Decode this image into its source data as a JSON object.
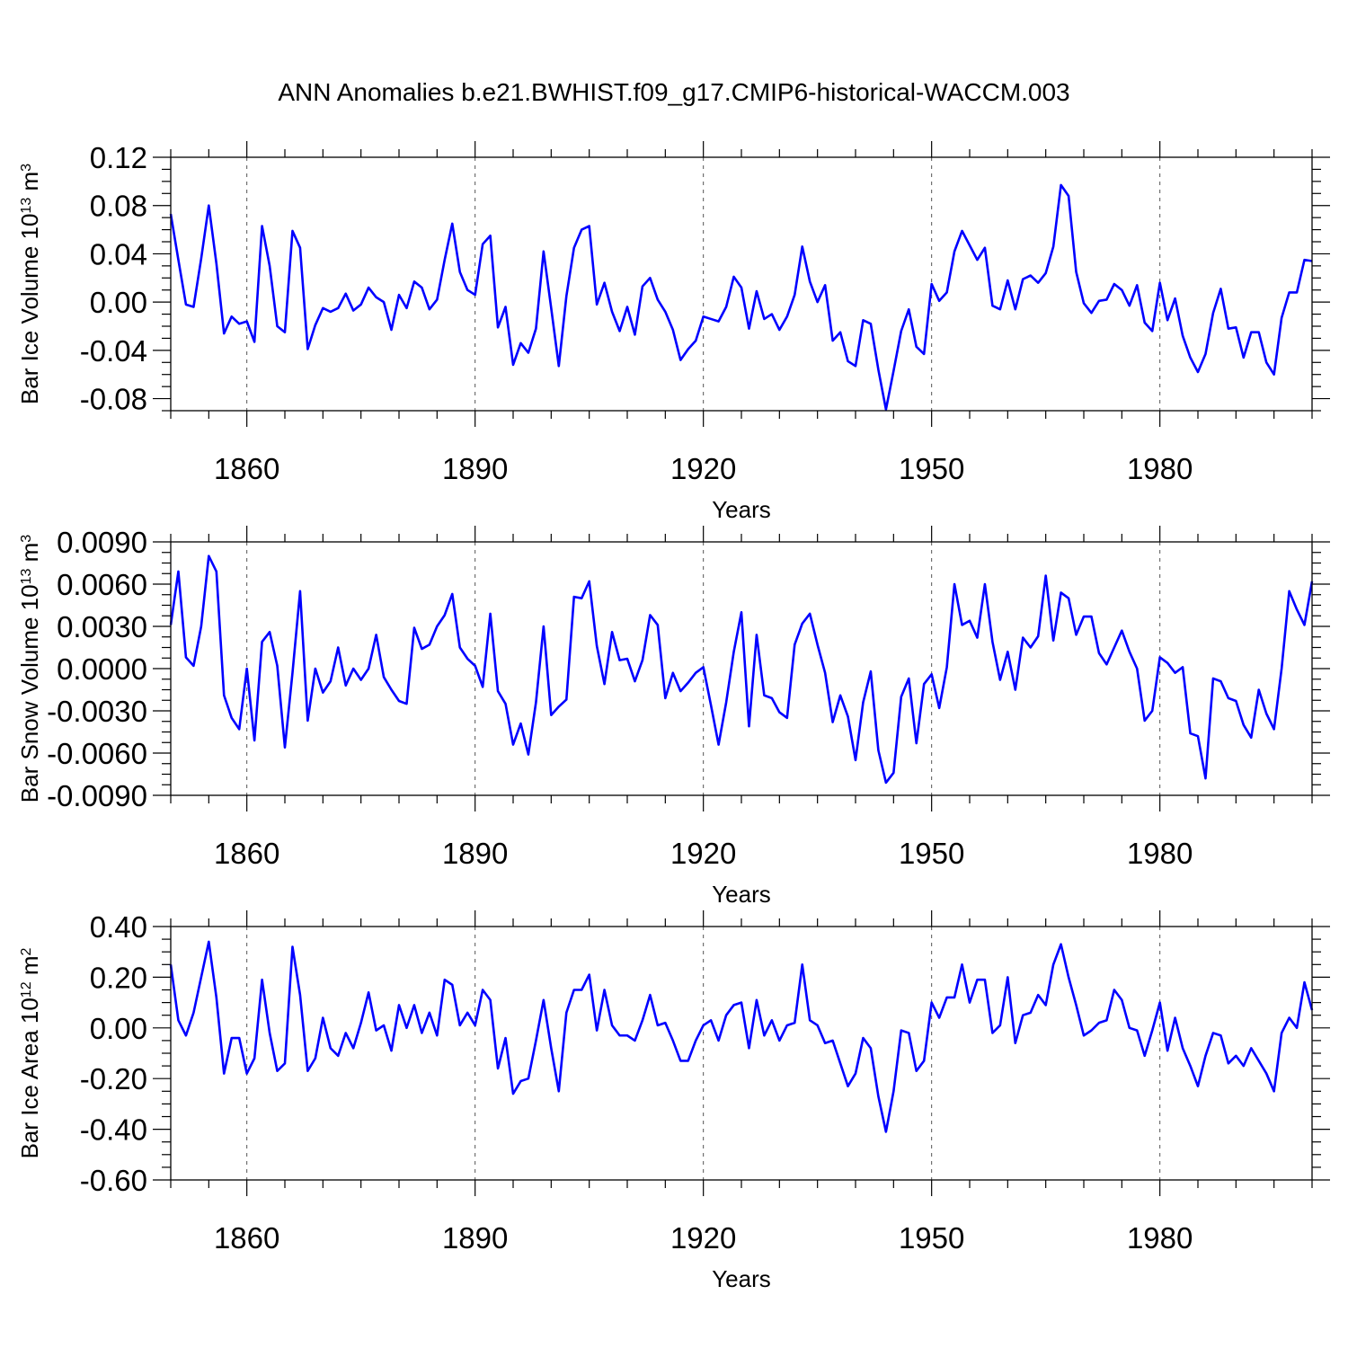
{
  "title": "ANN Anomalies b.e21.BWHIST.f09_g17.CMIP6-historical-WACCM.003",
  "colors": {
    "line": "#0000ff",
    "axis": "#000000",
    "background": "#ffffff"
  },
  "chart_data": [
    {
      "type": "line",
      "name": "ice-volume",
      "ylabel": {
        "main": "Bar Ice Volume 10",
        "sup1": "13",
        "unit": " m",
        "sup2": "3"
      },
      "xlabel": "Years",
      "xlim": [
        1850,
        2000
      ],
      "ylim": [
        -0.09,
        0.12
      ],
      "xticks": [
        1860,
        1890,
        1920,
        1950,
        1980
      ],
      "xtick_labels": [
        "1860",
        "1890",
        "1920",
        "1950",
        "1980"
      ],
      "yticks": [
        -0.08,
        -0.04,
        0.0,
        0.04,
        0.08,
        0.12
      ],
      "ytick_labels": [
        "-0.08",
        "-0.04",
        "0.00",
        "0.04",
        "0.08",
        "0.12"
      ],
      "x_start": 1850,
      "values": [
        0.073,
        0.035,
        -0.002,
        -0.004,
        0.036,
        0.08,
        0.032,
        -0.026,
        -0.012,
        -0.018,
        -0.016,
        -0.033,
        0.063,
        0.03,
        -0.02,
        -0.025,
        0.059,
        0.045,
        -0.039,
        -0.019,
        -0.005,
        -0.008,
        -0.005,
        0.007,
        -0.007,
        -0.002,
        0.012,
        0.004,
        0.0,
        -0.023,
        0.006,
        -0.005,
        0.017,
        0.012,
        -0.006,
        0.002,
        0.035,
        0.065,
        0.025,
        0.01,
        0.006,
        0.048,
        0.055,
        -0.021,
        -0.004,
        -0.052,
        -0.034,
        -0.042,
        -0.022,
        0.042,
        -0.005,
        -0.053,
        0.005,
        0.045,
        0.06,
        0.063,
        -0.002,
        0.016,
        -0.008,
        -0.024,
        -0.004,
        -0.027,
        0.013,
        0.02,
        0.002,
        -0.008,
        -0.023,
        -0.048,
        -0.039,
        -0.032,
        -0.012,
        -0.014,
        -0.016,
        -0.004,
        0.021,
        0.012,
        -0.022,
        0.009,
        -0.014,
        -0.01,
        -0.023,
        -0.012,
        0.006,
        0.046,
        0.017,
        0.0,
        0.014,
        -0.032,
        -0.025,
        -0.049,
        -0.053,
        -0.015,
        -0.018,
        -0.056,
        -0.089,
        -0.057,
        -0.024,
        -0.006,
        -0.037,
        -0.043,
        0.015,
        0.001,
        0.008,
        0.042,
        0.059,
        0.047,
        0.035,
        0.045,
        -0.003,
        -0.006,
        0.018,
        -0.006,
        0.019,
        0.022,
        0.016,
        0.024,
        0.046,
        0.097,
        0.088,
        0.025,
        -0.001,
        -0.009,
        0.001,
        0.002,
        0.015,
        0.01,
        -0.003,
        0.014,
        -0.017,
        -0.024,
        0.016,
        -0.015,
        0.003,
        -0.028,
        -0.046,
        -0.058,
        -0.043,
        -0.009,
        0.011,
        -0.022,
        -0.021,
        -0.046,
        -0.025,
        -0.025,
        -0.05,
        -0.06,
        -0.013,
        0.008,
        0.008,
        0.035,
        0.034
      ]
    },
    {
      "type": "line",
      "name": "snow-volume",
      "ylabel": {
        "main": "Bar Snow Volume 10",
        "sup1": "13",
        "unit": " m",
        "sup2": "3"
      },
      "xlabel": "Years",
      "xlim": [
        1850,
        2000
      ],
      "ylim": [
        -0.009,
        0.009
      ],
      "xticks": [
        1860,
        1890,
        1920,
        1950,
        1980
      ],
      "xtick_labels": [
        "1860",
        "1890",
        "1920",
        "1950",
        "1980"
      ],
      "yticks": [
        -0.009,
        -0.006,
        -0.003,
        0.0,
        0.003,
        0.006,
        0.009
      ],
      "ytick_labels": [
        "-0.0090",
        "-0.0060",
        "-0.0030",
        "0.0000",
        "0.0030",
        "0.0060",
        "0.0090"
      ],
      "x_start": 1850,
      "values": [
        0.0031,
        0.0069,
        0.0008,
        0.0002,
        0.003,
        0.008,
        0.0069,
        -0.0019,
        -0.0035,
        -0.0043,
        0.0,
        -0.0051,
        0.0019,
        0.0026,
        0.0002,
        -0.0056,
        -0.0003,
        0.0055,
        -0.0037,
        0.0,
        -0.0017,
        -0.0009,
        0.0015,
        -0.0012,
        0.0,
        -0.0008,
        0.0,
        0.0024,
        -0.0006,
        -0.0015,
        -0.0023,
        -0.0025,
        0.0029,
        0.0014,
        0.0017,
        0.003,
        0.0038,
        0.0053,
        0.0015,
        0.0007,
        0.0002,
        -0.0013,
        0.0039,
        -0.0016,
        -0.0025,
        -0.0054,
        -0.0039,
        -0.0061,
        -0.0024,
        0.003,
        -0.0033,
        -0.0027,
        -0.0022,
        0.0051,
        0.005,
        0.0062,
        0.0016,
        -0.0011,
        0.0026,
        0.0006,
        0.0007,
        -0.0009,
        0.0006,
        0.0038,
        0.0031,
        -0.0021,
        -0.0003,
        -0.0016,
        -0.001,
        -0.0003,
        0.0001,
        -0.0026,
        -0.0054,
        -0.0024,
        0.0012,
        0.004,
        -0.0041,
        0.0024,
        -0.0019,
        -0.0021,
        -0.0031,
        -0.0035,
        0.0017,
        0.0032,
        0.0039,
        0.0017,
        -0.0003,
        -0.0038,
        -0.0019,
        -0.0034,
        -0.0065,
        -0.0024,
        -0.0002,
        -0.0058,
        -0.0081,
        -0.0074,
        -0.002,
        -0.0007,
        -0.0053,
        -0.0011,
        -0.0004,
        -0.0028,
        0.0001,
        0.006,
        0.0031,
        0.0034,
        0.0022,
        0.006,
        0.0019,
        -0.0008,
        0.0012,
        -0.0015,
        0.0022,
        0.0015,
        0.0023,
        0.0066,
        0.002,
        0.0054,
        0.005,
        0.0024,
        0.0037,
        0.0037,
        0.0011,
        0.0003,
        0.0015,
        0.0027,
        0.0012,
        0.0,
        -0.0037,
        -0.003,
        0.0008,
        0.0004,
        -0.0003,
        0.0001,
        -0.0046,
        -0.0048,
        -0.0078,
        -0.0007,
        -0.0009,
        -0.0021,
        -0.0023,
        -0.004,
        -0.0049,
        -0.0015,
        -0.0032,
        -0.0043,
        0.0,
        0.0055,
        0.0042,
        0.0031,
        0.0062
      ]
    },
    {
      "type": "line",
      "name": "ice-area",
      "ylabel": {
        "main": "Bar Ice Area 10",
        "sup1": "12",
        "unit": " m",
        "sup2": "2"
      },
      "xlabel": "Years",
      "xlim": [
        1850,
        2000
      ],
      "ylim": [
        -0.6,
        0.4
      ],
      "xticks": [
        1860,
        1890,
        1920,
        1950,
        1980
      ],
      "xtick_labels": [
        "1860",
        "1890",
        "1920",
        "1950",
        "1980"
      ],
      "yticks": [
        -0.6,
        -0.4,
        -0.2,
        0.0,
        0.2,
        0.4
      ],
      "ytick_labels": [
        "-0.60",
        "-0.40",
        "-0.20",
        "0.00",
        "0.20",
        "0.40"
      ],
      "x_start": 1850,
      "values": [
        0.25,
        0.03,
        -0.03,
        0.06,
        0.2,
        0.34,
        0.12,
        -0.18,
        -0.04,
        -0.04,
        -0.18,
        -0.12,
        0.19,
        -0.02,
        -0.17,
        -0.14,
        0.32,
        0.13,
        -0.17,
        -0.12,
        0.04,
        -0.08,
        -0.11,
        -0.02,
        -0.08,
        0.02,
        0.14,
        -0.01,
        0.01,
        -0.09,
        0.09,
        0.0,
        0.09,
        -0.02,
        0.06,
        -0.03,
        0.19,
        0.17,
        0.01,
        0.06,
        0.01,
        0.15,
        0.11,
        -0.16,
        -0.04,
        -0.26,
        -0.21,
        -0.2,
        -0.05,
        0.11,
        -0.08,
        -0.25,
        0.06,
        0.15,
        0.15,
        0.21,
        -0.01,
        0.15,
        0.01,
        -0.03,
        -0.03,
        -0.05,
        0.03,
        0.13,
        0.01,
        0.02,
        -0.05,
        -0.13,
        -0.13,
        -0.05,
        0.01,
        0.03,
        -0.05,
        0.05,
        0.09,
        0.1,
        -0.08,
        0.11,
        -0.03,
        0.03,
        -0.05,
        0.01,
        0.02,
        0.25,
        0.03,
        0.01,
        -0.06,
        -0.05,
        -0.14,
        -0.23,
        -0.18,
        -0.04,
        -0.08,
        -0.27,
        -0.41,
        -0.25,
        -0.01,
        -0.02,
        -0.17,
        -0.13,
        0.1,
        0.04,
        0.12,
        0.12,
        0.25,
        0.1,
        0.19,
        0.19,
        -0.02,
        0.01,
        0.2,
        -0.06,
        0.05,
        0.06,
        0.13,
        0.09,
        0.25,
        0.33,
        0.2,
        0.09,
        -0.03,
        -0.01,
        0.02,
        0.03,
        0.15,
        0.11,
        0.0,
        -0.01,
        -0.11,
        -0.01,
        0.1,
        -0.09,
        0.04,
        -0.08,
        -0.15,
        -0.23,
        -0.11,
        -0.02,
        -0.03,
        -0.14,
        -0.11,
        -0.15,
        -0.08,
        -0.13,
        -0.18,
        -0.25,
        -0.02,
        0.04,
        0.0,
        0.18,
        0.07
      ]
    }
  ]
}
